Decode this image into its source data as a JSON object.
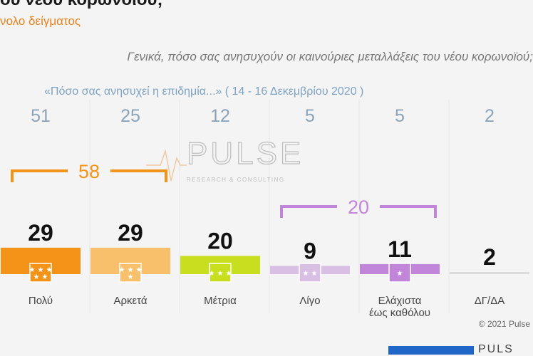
{
  "title": "ου νέου κορωνοϊού;",
  "subtitle": "νολο δείγματος",
  "question": "Γενικά, πόσο σας ανησυχούν οι καινούριες μεταλλάξεις του νέου κορωνοϊού;",
  "previous_label": "«Πόσο σας ανησυχεί η επιδημία...» ( 14 - 16  Δεκεμβρίου  2020 )",
  "watermark": {
    "brand": "PULSE",
    "tagline": "RESEARCH & CONSULTING"
  },
  "copyright": "© 2021 Pulse",
  "footer_brand": "PULS",
  "colors": {
    "orange": "#f39418",
    "light_orange": "#f8c06a",
    "lime": "#c7df1f",
    "light_purple": "#d9bfe3",
    "purple": "#c186da",
    "gray": "#dddddd",
    "previous_text": "#8ba3b8"
  },
  "chart_data": {
    "type": "bar",
    "categories": [
      "Πολύ",
      "Αρκετά",
      "Μέτρια",
      "Λίγο",
      "Ελάχιστα έως καθόλου",
      "ΔΓ/ΔΑ"
    ],
    "category_lines": [
      [
        "Πολύ"
      ],
      [
        "Αρκετά"
      ],
      [
        "Μέτρια"
      ],
      [
        "Λίγο"
      ],
      [
        "Ελάχιστα",
        "έως καθόλου"
      ],
      [
        "ΔΓ/ΔΑ"
      ]
    ],
    "values": [
      29,
      29,
      20,
      9,
      11,
      2
    ],
    "previous_values": [
      51,
      25,
      12,
      5,
      5,
      2
    ],
    "bar_colors": [
      "#f39418",
      "#f8c06a",
      "#c7df1f",
      "#d9bfe3",
      "#c186da",
      "#dddddd"
    ],
    "icon_stars": [
      5,
      4,
      3,
      2,
      1,
      0
    ],
    "groups": [
      {
        "value": 58,
        "from": 0,
        "to": 1,
        "color": "#f39418"
      },
      {
        "value": 20,
        "from": 3,
        "to": 4,
        "color": "#c186da"
      }
    ]
  }
}
